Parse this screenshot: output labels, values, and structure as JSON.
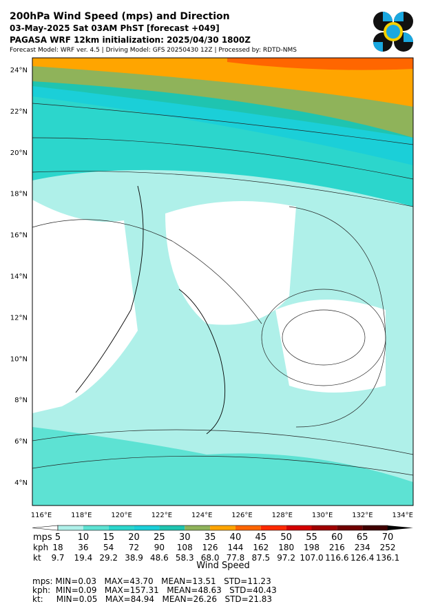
{
  "header": {
    "title": "200hPa Wind Speed (mps) and Direction",
    "line2": "03-May-2025 Sat 03AM PhST [forecast +049]",
    "line3": "PAGASA WRF 12km initialization: 2025/04/30 1800Z",
    "line4": "Forecast Model: WRF ver. 4.5 | Driving Model: GFS 20250430 12Z | Processed by: RDTD-NMS"
  },
  "map": {
    "lat_labels": [
      "24°N",
      "22°N",
      "20°N",
      "18°N",
      "16°N",
      "14°N",
      "12°N",
      "10°N",
      "8°N",
      "6°N",
      "4°N"
    ],
    "lon_labels": [
      "116°E",
      "118°E",
      "120°E",
      "122°E",
      "124°E",
      "126°E",
      "128°E",
      "130°E",
      "132°E",
      "134°E"
    ]
  },
  "colorbar": {
    "title": "Wind Speed",
    "colors": [
      "#aff0e9",
      "#5de2d3",
      "#2cd6cc",
      "#1bcfd8",
      "#1fc4b0",
      "#8fb35a",
      "#ffa500",
      "#ff6600",
      "#ff2a00",
      "#d40000",
      "#a00000",
      "#700000",
      "#400000"
    ],
    "rows": [
      {
        "unit": "mps",
        "values": [
          "5",
          "10",
          "15",
          "20",
          "25",
          "30",
          "35",
          "40",
          "45",
          "50",
          "55",
          "60",
          "65",
          "70"
        ]
      },
      {
        "unit": "kph",
        "values": [
          "18",
          "36",
          "54",
          "72",
          "90",
          "108",
          "126",
          "144",
          "162",
          "180",
          "198",
          "216",
          "234",
          "252"
        ]
      },
      {
        "unit": "kt",
        "values": [
          "9.7",
          "19.4",
          "29.2",
          "38.9",
          "48.6",
          "58.3",
          "68.0",
          "77.8",
          "87.5",
          "97.2",
          "107.0",
          "116.6",
          "126.4",
          "136.1"
        ]
      }
    ]
  },
  "stats": [
    "mps: MIN=0.03   MAX=43.70   MEAN=13.51   STD=11.23",
    "kph:  MIN=0.09   MAX=157.31   MEAN=48.63   STD=40.43",
    "kt:     MIN=0.05   MAX=84.94   MEAN=26.26   STD=21.83"
  ]
}
